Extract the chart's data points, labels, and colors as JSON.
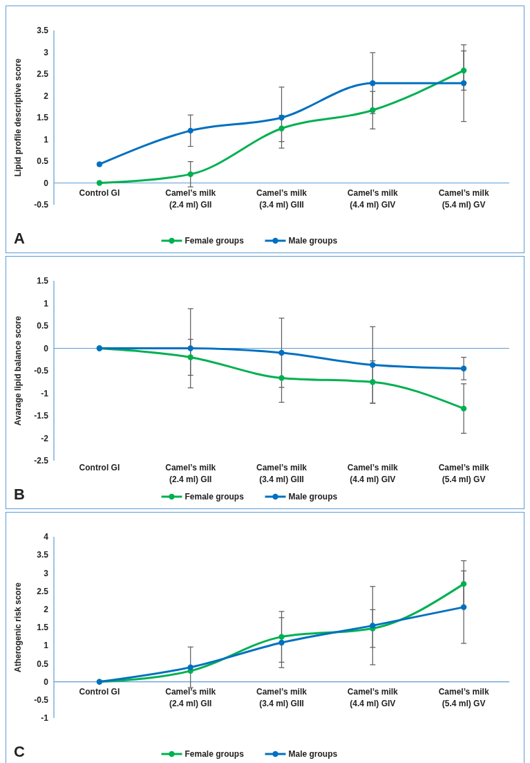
{
  "chart_data": [
    {
      "type": "line",
      "ylabel": "Lipid profile descriptive score",
      "annotations": [
        "A"
      ],
      "categories": [
        "Control GI",
        "Camel’s milk (2.4 ml) GII",
        "Camel’s milk (3.4 ml) GIII",
        "Camel’s milk (4.4 ml) GIV",
        "Camel’s milk (5.4 ml) GV"
      ],
      "series": [
        {
          "name": "Female groups",
          "color": "#00b050",
          "values": [
            0,
            0.2,
            1.25,
            1.67,
            2.58
          ],
          "errors": [
            null,
            0.29,
            0.3,
            0.43,
            0.45
          ]
        },
        {
          "name": "Male groups",
          "color": "#0070c0",
          "values": [
            0.43,
            1.2,
            1.5,
            2.29,
            2.29
          ],
          "errors": [
            null,
            0.36,
            0.7,
            0.7,
            0.88
          ]
        }
      ],
      "ylim": [
        -0.5,
        3.5
      ],
      "yticks": [
        -0.5,
        0,
        0.5,
        1,
        1.5,
        2,
        2.5,
        3,
        3.5
      ],
      "grid": false,
      "legend": "bottom",
      "marker": "circle"
    },
    {
      "type": "line",
      "ylabel": "Avarage lipid balance score",
      "annotations": [
        "B"
      ],
      "categories": [
        "Control GI",
        "Camel’s milk (2.4 ml) GII",
        "Camel’s milk (3.4 ml) GIII",
        "Camel’s milk (4.4 ml) GIV",
        "Camel’s milk (5.4 ml) GV"
      ],
      "series": [
        {
          "name": "Female groups",
          "color": "#00b050",
          "values": [
            0,
            -0.2,
            -0.66,
            -0.75,
            -1.34
          ],
          "errors": [
            null,
            0.4,
            0.54,
            0.47,
            0.55
          ]
        },
        {
          "name": "Male groups",
          "color": "#0070c0",
          "values": [
            0,
            0,
            -0.1,
            -0.37,
            -0.45
          ],
          "errors": [
            null,
            0.88,
            0.77,
            0.85,
            0.25
          ]
        }
      ],
      "ref_lines": [
        {
          "axis": "y",
          "value": 0,
          "color": "#5b9bd5"
        }
      ],
      "ylim": [
        -2.5,
        1.5
      ],
      "yticks": [
        -2.5,
        -2,
        -1.5,
        -1,
        -0.5,
        0,
        0.5,
        1,
        1.5
      ],
      "grid": false,
      "legend": "bottom",
      "marker": "circle"
    },
    {
      "type": "line",
      "ylabel": "Atherogenic risk score",
      "annotations": [
        "C"
      ],
      "categories": [
        "Control GI",
        "Camel’s milk (2.4 ml) GII",
        "Camel’s milk (3.4 ml) GIII",
        "Camel’s milk (4.4 ml) GIV",
        "Camel’s milk (5.4 ml) GV"
      ],
      "series": [
        {
          "name": "Female groups",
          "color": "#00b050",
          "values": [
            0,
            0.3,
            1.24,
            1.47,
            2.7
          ],
          "errors": [
            null,
            null,
            0.7,
            0.52,
            0.64
          ]
        },
        {
          "name": "Male groups",
          "color": "#0070c0",
          "values": [
            0,
            0.4,
            1.08,
            1.55,
            2.06
          ],
          "errors": [
            null,
            0.56,
            0.69,
            1.08,
            1.0
          ]
        }
      ],
      "ylim": [
        -1,
        4
      ],
      "yticks": [
        -1,
        -0.5,
        0,
        0.5,
        1,
        1.5,
        2,
        2.5,
        3,
        3.5,
        4
      ],
      "grid": false,
      "legend": "bottom",
      "marker": "circle"
    }
  ]
}
